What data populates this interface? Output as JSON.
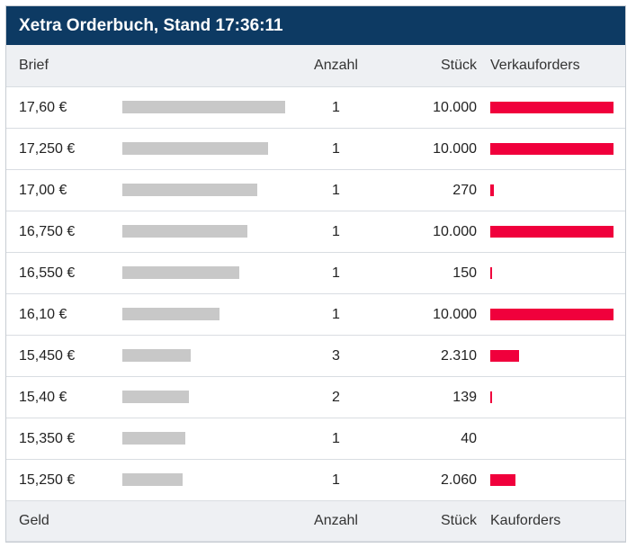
{
  "title": "Xetra Orderbuch, Stand 17:36:11",
  "header": {
    "col1": "Brief",
    "col2": "Anzahl",
    "col3": "Stück",
    "col4": "Verkauforders"
  },
  "footer": {
    "col1": "Geld",
    "col2": "Anzahl",
    "col3": "Stück",
    "col4": "Kauforders"
  },
  "rows": [
    {
      "price": "17,60 €",
      "count": "1",
      "qty": "10.000",
      "sell_qty_share": 1.0,
      "bid_bar_share": 0.95
    },
    {
      "price": "17,250 €",
      "count": "1",
      "qty": "10.000",
      "sell_qty_share": 1.0,
      "bid_bar_share": 0.855
    },
    {
      "price": "17,00 €",
      "count": "1",
      "qty": "270",
      "sell_qty_share": 0.027,
      "bid_bar_share": 0.79
    },
    {
      "price": "16,750 €",
      "count": "1",
      "qty": "10.000",
      "sell_qty_share": 1.0,
      "bid_bar_share": 0.73
    },
    {
      "price": "16,550 €",
      "count": "1",
      "qty": "150",
      "sell_qty_share": 0.015,
      "bid_bar_share": 0.685
    },
    {
      "price": "16,10 €",
      "count": "1",
      "qty": "10.000",
      "sell_qty_share": 1.0,
      "bid_bar_share": 0.57
    },
    {
      "price": "15,450 €",
      "count": "3",
      "qty": "2.310",
      "sell_qty_share": 0.231,
      "bid_bar_share": 0.4
    },
    {
      "price": "15,40 €",
      "count": "2",
      "qty": "139",
      "sell_qty_share": 0.0139,
      "bid_bar_share": 0.39
    },
    {
      "price": "15,350 €",
      "count": "1",
      "qty": "40",
      "sell_qty_share": 0.004,
      "bid_bar_share": 0.37
    },
    {
      "price": "15,250 €",
      "count": "1",
      "qty": "2.060",
      "sell_qty_share": 0.206,
      "bid_bar_share": 0.355
    }
  ],
  "colors": {
    "title_bg": "#0d3a63",
    "sell_bar": "#f0003c",
    "level_bar": "#c8c8c8",
    "header_bg": "#eef0f3"
  }
}
